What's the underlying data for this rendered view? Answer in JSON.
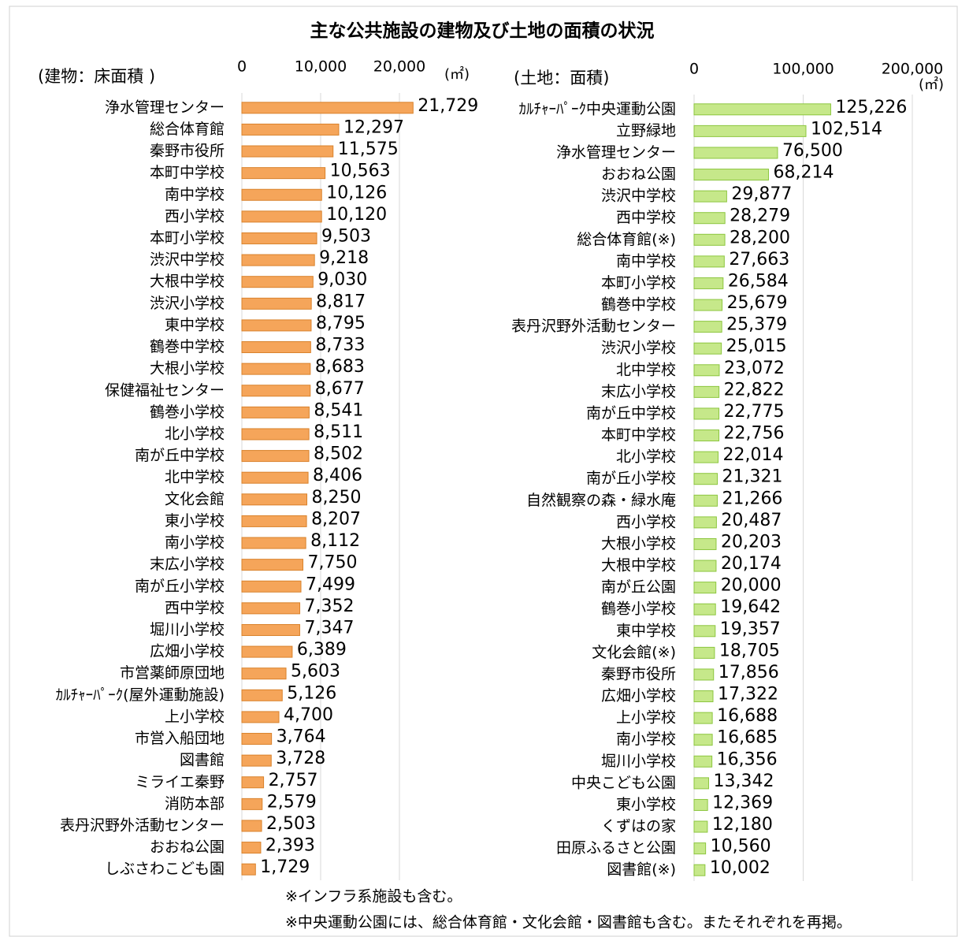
{
  "title": "主な公共施設の建物及び土地の面積の状況",
  "notes": [
    "※インフラ系施設も含む。",
    "※中央運動公園には、総合体育館・文化会館・図書館も含む。またそれぞれを再掲。"
  ],
  "chart_data": [
    {
      "type": "barh",
      "title": "(建物：床面積 )",
      "unit": "(㎡)",
      "color": "#f5a55a",
      "edge": "#d9822b",
      "grid": true,
      "xlim": [
        0,
        30000
      ],
      "xticks": [
        0,
        {
          "value": 10000,
          "label": "10,000"
        },
        {
          "value": 20000,
          "label": "20,000"
        }
      ],
      "categories": [
        "浄水管理センター",
        "総合体育館",
        "秦野市役所",
        "本町中学校",
        "南中学校",
        "西小学校",
        "本町小学校",
        "渋沢中学校",
        "大根中学校",
        "渋沢小学校",
        "東中学校",
        "鶴巻中学校",
        "大根小学校",
        "保健福祉センター",
        "鶴巻小学校",
        "北小学校",
        "南が丘中学校",
        "北中学校",
        "文化会館",
        "東小学校",
        "南小学校",
        "末広小学校",
        "南が丘小学校",
        "西中学校",
        "堀川小学校",
        "広畑小学校",
        "市営薬師原団地",
        "ｶﾙﾁｬｰﾊﾟｰｸ(屋外運動施設)",
        "上小学校",
        "市営入船団地",
        "図書館",
        "ミライエ秦野",
        "消防本部",
        "表丹沢野外活動センター",
        "おおね公園",
        "しぶさわこども園"
      ],
      "values": [
        21729,
        12297,
        11575,
        10563,
        10126,
        10120,
        9503,
        9218,
        9030,
        8817,
        8795,
        8733,
        8683,
        8677,
        8541,
        8511,
        8502,
        8406,
        8250,
        8207,
        8112,
        7750,
        7499,
        7352,
        7347,
        6389,
        5603,
        5126,
        4700,
        3764,
        3728,
        2757,
        2579,
        2503,
        2393,
        1729
      ],
      "value_labels": [
        "21,729",
        "12,297",
        "11,575",
        "10,563",
        "10,126",
        "10,120",
        "9,503",
        "9,218",
        "9,030",
        "8,817",
        "8,795",
        "8,733",
        "8,683",
        "8,677",
        "8,541",
        "8,511",
        "8,502",
        "8,406",
        "8,250",
        "8,207",
        "8,112",
        "7,750",
        "7,499",
        "7,352",
        "7,347",
        "6,389",
        "5,603",
        "5,126",
        "4,700",
        "3,764",
        "3,728",
        "2,757",
        "2,579",
        "2,503",
        "2,393",
        "1,729"
      ]
    },
    {
      "type": "barh",
      "title": "(土地：面積)",
      "unit": "(㎡)",
      "color": "#c6e88a",
      "edge": "#8cc63f",
      "grid": true,
      "xlim": [
        0,
        200000
      ],
      "xticks": [
        0,
        {
          "value": 100000,
          "label": "100,000"
        },
        {
          "value": 200000,
          "label": "200,000"
        }
      ],
      "categories": [
        "ｶﾙﾁｬｰﾊﾟｰｸ中央運動公園",
        "立野緑地",
        "浄水管理センター",
        "おおね公園",
        "渋沢中学校",
        "西中学校",
        "総合体育館(※)",
        "南中学校",
        "本町小学校",
        "鶴巻中学校",
        "表丹沢野外活動センター",
        "渋沢小学校",
        "北中学校",
        "末広小学校",
        "南が丘中学校",
        "本町中学校",
        "北小学校",
        "南が丘小学校",
        "自然観察の森・緑水庵",
        "西小学校",
        "大根小学校",
        "大根中学校",
        "南が丘公園",
        "鶴巻小学校",
        "東中学校",
        "文化会館(※)",
        "秦野市役所",
        "広畑小学校",
        "上小学校",
        "南小学校",
        "堀川小学校",
        "中央こども公園",
        "東小学校",
        "くずはの家",
        "田原ふるさと公園",
        "図書館(※)"
      ],
      "values": [
        125226,
        102514,
        76500,
        68214,
        29877,
        28279,
        28200,
        27663,
        26584,
        25679,
        25379,
        25015,
        23072,
        22822,
        22775,
        22756,
        22014,
        21321,
        21266,
        20487,
        20203,
        20174,
        20000,
        19642,
        19357,
        18705,
        17856,
        17322,
        16688,
        16685,
        16356,
        13342,
        12369,
        12180,
        10560,
        10002
      ],
      "value_labels": [
        "125,226",
        "102,514",
        "76,500",
        "68,214",
        "29,877",
        "28,279",
        "28,200",
        "27,663",
        "26,584",
        "25,679",
        "25,379",
        "25,015",
        "23,072",
        "22,822",
        "22,775",
        "22,756",
        "22,014",
        "21,321",
        "21,266",
        "20,487",
        "20,203",
        "20,174",
        "20,000",
        "19,642",
        "19,357",
        "18,705",
        "17,856",
        "17,322",
        "16,688",
        "16,685",
        "16,356",
        "13,342",
        "12,369",
        "12,180",
        "10,560",
        "10,002"
      ]
    }
  ]
}
